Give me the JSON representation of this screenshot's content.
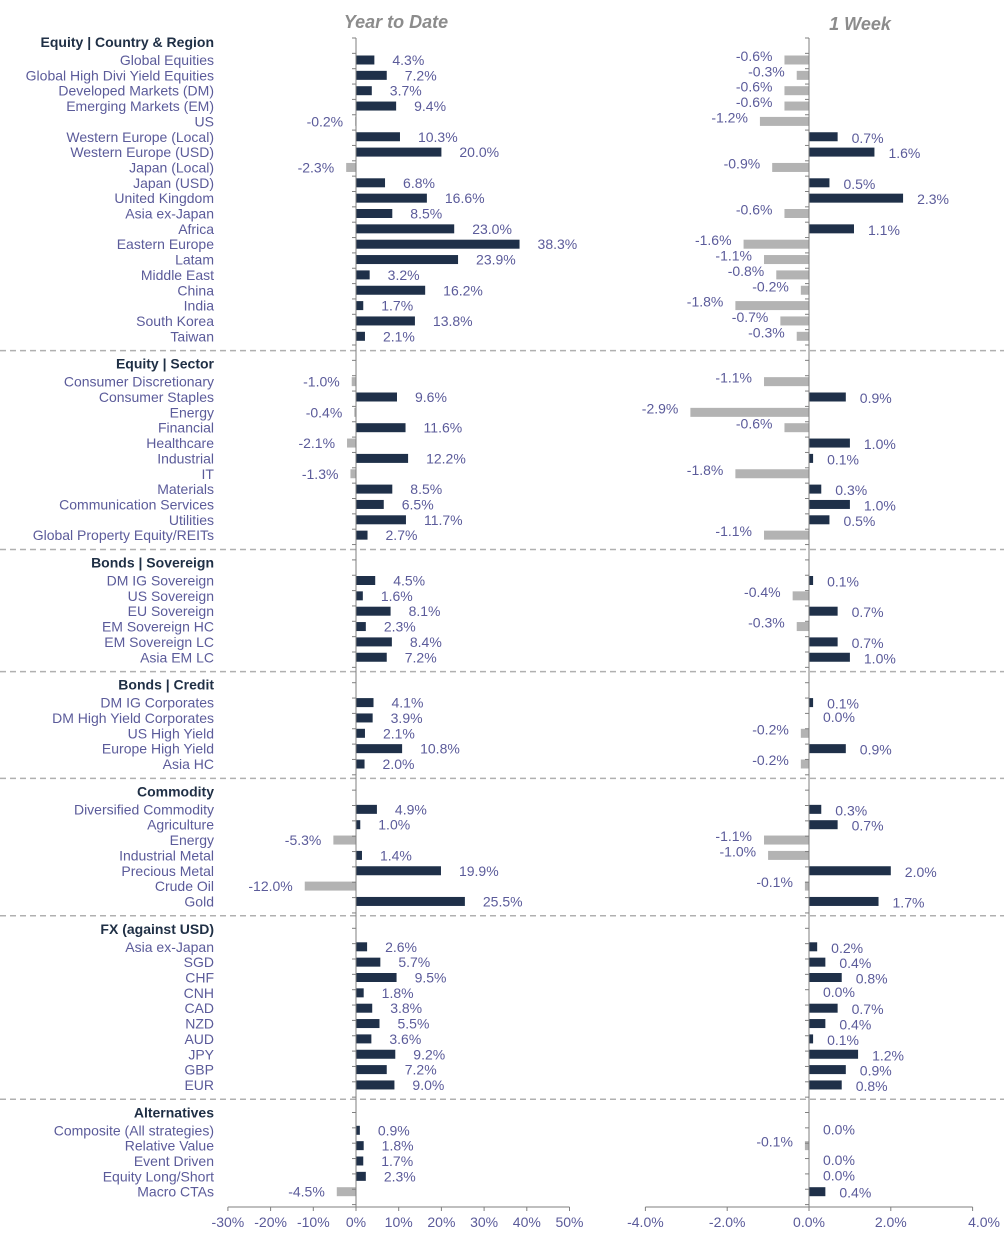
{
  "chart_data": {
    "type": "bar",
    "orientation": "horizontal",
    "panels": [
      {
        "title": "Year to Date",
        "xlim": [
          -30,
          50
        ],
        "ticks": [
          -30,
          -20,
          -10,
          0,
          10,
          20,
          30,
          40,
          50
        ],
        "tick_labels": [
          "-30%",
          "-20%",
          "-10%",
          "0%",
          "10%",
          "20%",
          "30%",
          "40%",
          "50%"
        ],
        "unit": "%"
      },
      {
        "title": "1 Week",
        "xlim": [
          -4,
          4
        ],
        "ticks": [
          -4,
          -2,
          0,
          2,
          4
        ],
        "tick_labels": [
          "-4.0%",
          "-2.0%",
          "0.0%",
          "2.0%",
          "4.0%"
        ],
        "unit": "%"
      }
    ],
    "colors": {
      "positive": "#1f3049",
      "negative": "#b3b3b3",
      "divider": "#b0b0b0",
      "axis": "#7f7f7f"
    },
    "groups": [
      {
        "title": "Equity | Country & Region",
        "rows": [
          {
            "label": "Global Equities",
            "ytd": 4.3,
            "ytd_label": "4.3%",
            "wk": -0.6,
            "wk_label": "-0.6%"
          },
          {
            "label": "Global High Divi Yield Equities",
            "ytd": 7.2,
            "ytd_label": "7.2%",
            "wk": -0.3,
            "wk_label": "-0.3%"
          },
          {
            "label": "Developed Markets (DM)",
            "ytd": 3.7,
            "ytd_label": "3.7%",
            "wk": -0.6,
            "wk_label": "-0.6%"
          },
          {
            "label": "Emerging Markets (EM)",
            "ytd": 9.4,
            "ytd_label": "9.4%",
            "wk": -0.6,
            "wk_label": "-0.6%"
          },
          {
            "label": "US",
            "ytd": -0.2,
            "ytd_label": "-0.2%",
            "wk": -1.2,
            "wk_label": "-1.2%"
          },
          {
            "label": "Western Europe (Local)",
            "ytd": 10.3,
            "ytd_label": "10.3%",
            "wk": 0.7,
            "wk_label": "0.7%"
          },
          {
            "label": "Western Europe (USD)",
            "ytd": 20.0,
            "ytd_label": "20.0%",
            "wk": 1.6,
            "wk_label": "1.6%"
          },
          {
            "label": "Japan (Local)",
            "ytd": -2.3,
            "ytd_label": "-2.3%",
            "wk": -0.9,
            "wk_label": "-0.9%"
          },
          {
            "label": "Japan (USD)",
            "ytd": 6.8,
            "ytd_label": "6.8%",
            "wk": 0.5,
            "wk_label": "0.5%"
          },
          {
            "label": "United Kingdom",
            "ytd": 16.6,
            "ytd_label": "16.6%",
            "wk": 2.3,
            "wk_label": "2.3%"
          },
          {
            "label": "Asia ex-Japan",
            "ytd": 8.5,
            "ytd_label": "8.5%",
            "wk": -0.6,
            "wk_label": "-0.6%"
          },
          {
            "label": "Africa",
            "ytd": 23.0,
            "ytd_label": "23.0%",
            "wk": 1.1,
            "wk_label": "1.1%"
          },
          {
            "label": "Eastern Europe",
            "ytd": 38.3,
            "ytd_label": "38.3%",
            "wk": -1.6,
            "wk_label": "-1.6%"
          },
          {
            "label": "Latam",
            "ytd": 23.9,
            "ytd_label": "23.9%",
            "wk": -1.1,
            "wk_label": "-1.1%"
          },
          {
            "label": "Middle East",
            "ytd": 3.2,
            "ytd_label": "3.2%",
            "wk": -0.8,
            "wk_label": "-0.8%"
          },
          {
            "label": "China",
            "ytd": 16.2,
            "ytd_label": "16.2%",
            "wk": -0.2,
            "wk_label": "-0.2%"
          },
          {
            "label": "India",
            "ytd": 1.7,
            "ytd_label": "1.7%",
            "wk": -1.8,
            "wk_label": "-1.8%"
          },
          {
            "label": "South Korea",
            "ytd": 13.8,
            "ytd_label": "13.8%",
            "wk": -0.7,
            "wk_label": "-0.7%"
          },
          {
            "label": "Taiwan",
            "ytd": 2.1,
            "ytd_label": "2.1%",
            "wk": -0.3,
            "wk_label": "-0.3%"
          }
        ]
      },
      {
        "title": "Equity | Sector",
        "rows": [
          {
            "label": "Consumer Discretionary",
            "ytd": -1.0,
            "ytd_label": "-1.0%",
            "wk": -1.1,
            "wk_label": "-1.1%"
          },
          {
            "label": "Consumer Staples",
            "ytd": 9.6,
            "ytd_label": "9.6%",
            "wk": 0.9,
            "wk_label": "0.9%"
          },
          {
            "label": "Energy",
            "ytd": -0.4,
            "ytd_label": "-0.4%",
            "wk": -2.9,
            "wk_label": "-2.9%"
          },
          {
            "label": "Financial",
            "ytd": 11.6,
            "ytd_label": "11.6%",
            "wk": -0.6,
            "wk_label": "-0.6%"
          },
          {
            "label": "Healthcare",
            "ytd": -2.1,
            "ytd_label": "-2.1%",
            "wk": 1.0,
            "wk_label": "1.0%"
          },
          {
            "label": "Industrial",
            "ytd": 12.2,
            "ytd_label": "12.2%",
            "wk": 0.1,
            "wk_label": "0.1%"
          },
          {
            "label": "IT",
            "ytd": -1.3,
            "ytd_label": "-1.3%",
            "wk": -1.8,
            "wk_label": "-1.8%"
          },
          {
            "label": "Materials",
            "ytd": 8.5,
            "ytd_label": "8.5%",
            "wk": 0.3,
            "wk_label": "0.3%"
          },
          {
            "label": "Communication Services",
            "ytd": 6.5,
            "ytd_label": "6.5%",
            "wk": 1.0,
            "wk_label": "1.0%"
          },
          {
            "label": "Utilities",
            "ytd": 11.7,
            "ytd_label": "11.7%",
            "wk": 0.5,
            "wk_label": "0.5%"
          },
          {
            "label": "Global Property Equity/REITs",
            "ytd": 2.7,
            "ytd_label": "2.7%",
            "wk": -1.1,
            "wk_label": "-1.1%"
          }
        ]
      },
      {
        "title": "Bonds | Sovereign",
        "rows": [
          {
            "label": "DM IG Sovereign",
            "ytd": 4.5,
            "ytd_label": "4.5%",
            "wk": 0.1,
            "wk_label": "0.1%"
          },
          {
            "label": "US Sovereign",
            "ytd": 1.6,
            "ytd_label": "1.6%",
            "wk": -0.4,
            "wk_label": "-0.4%"
          },
          {
            "label": "EU Sovereign",
            "ytd": 8.1,
            "ytd_label": "8.1%",
            "wk": 0.7,
            "wk_label": "0.7%"
          },
          {
            "label": "EM Sovereign HC",
            "ytd": 2.3,
            "ytd_label": "2.3%",
            "wk": -0.3,
            "wk_label": "-0.3%"
          },
          {
            "label": "EM Sovereign LC",
            "ytd": 8.4,
            "ytd_label": "8.4%",
            "wk": 0.7,
            "wk_label": "0.7%"
          },
          {
            "label": "Asia EM LC",
            "ytd": 7.2,
            "ytd_label": "7.2%",
            "wk": 1.0,
            "wk_label": "1.0%"
          }
        ]
      },
      {
        "title": "Bonds | Credit",
        "rows": [
          {
            "label": "DM IG Corporates",
            "ytd": 4.1,
            "ytd_label": "4.1%",
            "wk": 0.1,
            "wk_label": "0.1%"
          },
          {
            "label": "DM High Yield Corporates",
            "ytd": 3.9,
            "ytd_label": "3.9%",
            "wk": 0.0,
            "wk_label": "0.0%"
          },
          {
            "label": "US High Yield",
            "ytd": 2.1,
            "ytd_label": "2.1%",
            "wk": -0.2,
            "wk_label": "-0.2%"
          },
          {
            "label": "Europe High Yield",
            "ytd": 10.8,
            "ytd_label": "10.8%",
            "wk": 0.9,
            "wk_label": "0.9%"
          },
          {
            "label": "Asia HC",
            "ytd": 2.0,
            "ytd_label": "2.0%",
            "wk": -0.2,
            "wk_label": "-0.2%"
          }
        ]
      },
      {
        "title": "Commodity",
        "rows": [
          {
            "label": "Diversified Commodity",
            "ytd": 4.9,
            "ytd_label": "4.9%",
            "wk": 0.3,
            "wk_label": "0.3%"
          },
          {
            "label": "Agriculture",
            "ytd": 1.0,
            "ytd_label": "1.0%",
            "wk": 0.7,
            "wk_label": "0.7%"
          },
          {
            "label": "Energy",
            "ytd": -5.3,
            "ytd_label": "-5.3%",
            "wk": -1.1,
            "wk_label": "-1.1%"
          },
          {
            "label": "Industrial Metal",
            "ytd": 1.4,
            "ytd_label": "1.4%",
            "wk": -1.0,
            "wk_label": "-1.0%"
          },
          {
            "label": "Precious Metal",
            "ytd": 19.9,
            "ytd_label": "19.9%",
            "wk": 2.0,
            "wk_label": "2.0%"
          },
          {
            "label": "Crude Oil",
            "ytd": -12.0,
            "ytd_label": "-12.0%",
            "wk": -0.1,
            "wk_label": "-0.1%"
          },
          {
            "label": "Gold",
            "ytd": 25.5,
            "ytd_label": "25.5%",
            "wk": 1.7,
            "wk_label": "1.7%"
          }
        ]
      },
      {
        "title": "FX (against USD)",
        "rows": [
          {
            "label": "Asia ex-Japan",
            "ytd": 2.6,
            "ytd_label": "2.6%",
            "wk": 0.2,
            "wk_label": "0.2%"
          },
          {
            "label": "SGD",
            "ytd": 5.7,
            "ytd_label": "5.7%",
            "wk": 0.4,
            "wk_label": "0.4%"
          },
          {
            "label": "CHF",
            "ytd": 9.5,
            "ytd_label": "9.5%",
            "wk": 0.8,
            "wk_label": "0.8%"
          },
          {
            "label": "CNH",
            "ytd": 1.8,
            "ytd_label": "1.8%",
            "wk": 0.0,
            "wk_label": "0.0%"
          },
          {
            "label": "CAD",
            "ytd": 3.8,
            "ytd_label": "3.8%",
            "wk": 0.7,
            "wk_label": "0.7%"
          },
          {
            "label": "NZD",
            "ytd": 5.5,
            "ytd_label": "5.5%",
            "wk": 0.4,
            "wk_label": "0.4%"
          },
          {
            "label": "AUD",
            "ytd": 3.6,
            "ytd_label": "3.6%",
            "wk": 0.1,
            "wk_label": "0.1%"
          },
          {
            "label": "JPY",
            "ytd": 9.2,
            "ytd_label": "9.2%",
            "wk": 1.2,
            "wk_label": "1.2%"
          },
          {
            "label": "GBP",
            "ytd": 7.2,
            "ytd_label": "7.2%",
            "wk": 0.9,
            "wk_label": "0.9%"
          },
          {
            "label": "EUR",
            "ytd": 9.0,
            "ytd_label": "9.0%",
            "wk": 0.8,
            "wk_label": "0.8%"
          }
        ]
      },
      {
        "title": "Alternatives",
        "rows": [
          {
            "label": "Composite (All strategies)",
            "ytd": 0.9,
            "ytd_label": "0.9%",
            "wk": 0.0,
            "wk_label": "0.0%"
          },
          {
            "label": "Relative Value",
            "ytd": 1.8,
            "ytd_label": "1.8%",
            "wk": -0.1,
            "wk_label": "-0.1%"
          },
          {
            "label": "Event Driven",
            "ytd": 1.7,
            "ytd_label": "1.7%",
            "wk": 0.0,
            "wk_label": "0.0%"
          },
          {
            "label": "Equity Long/Short",
            "ytd": 2.3,
            "ytd_label": "2.3%",
            "wk": 0.0,
            "wk_label": "0.0%"
          },
          {
            "label": "Macro CTAs",
            "ytd": -4.5,
            "ytd_label": "-4.5%",
            "wk": 0.4,
            "wk_label": "0.4%"
          }
        ]
      }
    ]
  }
}
